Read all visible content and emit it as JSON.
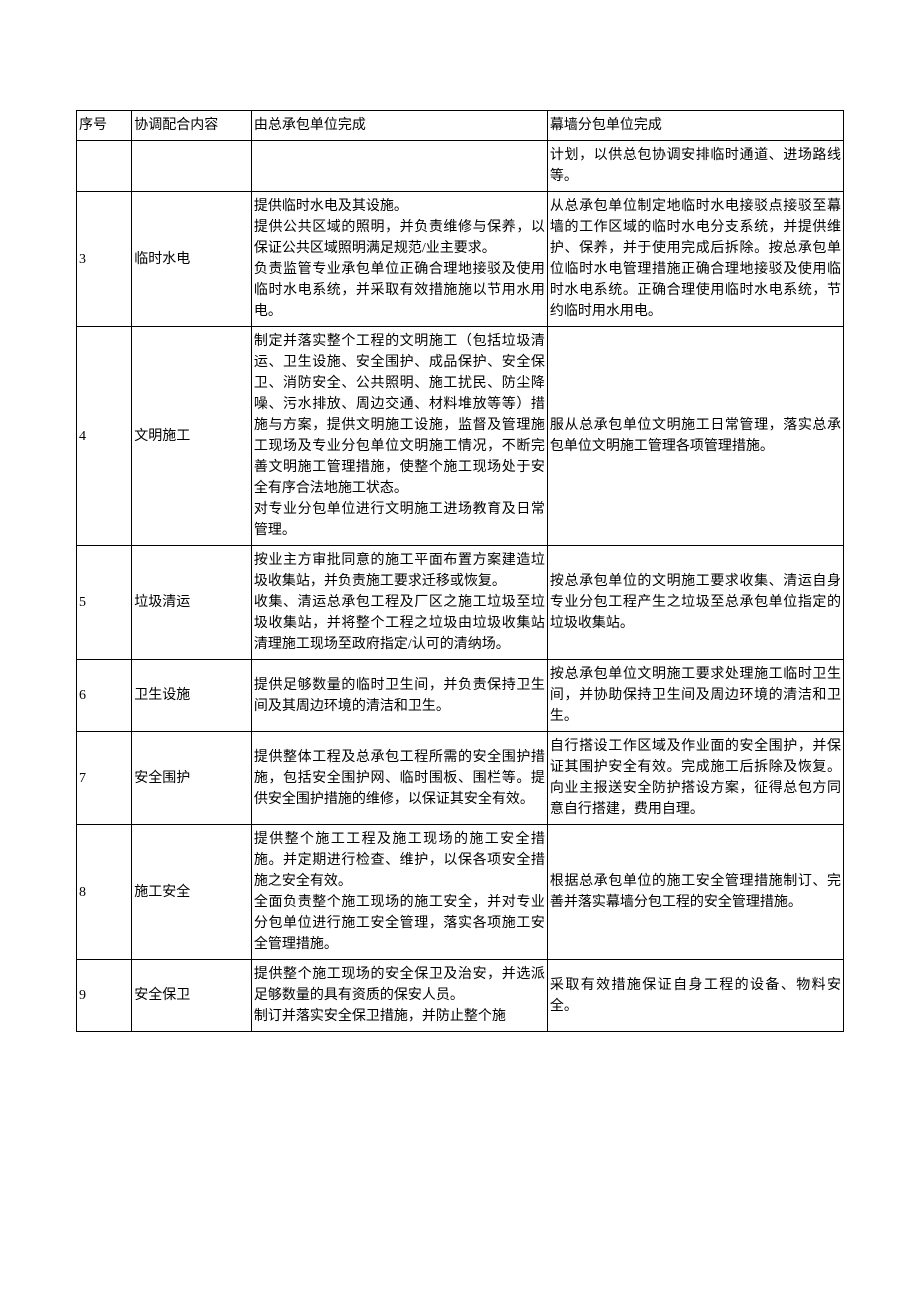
{
  "table": {
    "header": {
      "seq": "序号",
      "topic": "协调配合内容",
      "main": "由总承包单位完成",
      "sub": "幕墙分包单位完成"
    },
    "rows": [
      {
        "seq": "",
        "topic": "",
        "main": "",
        "sub": "计划，以供总包协调安排临时通道、进场路线等。"
      },
      {
        "seq": "3",
        "topic": "临时水电",
        "main": "提供临时水电及其设施。\n提供公共区域的照明，并负责维修与保养，以保证公共区域照明满足规范/业主要求。\n负责监管专业承包单位正确合理地接驳及使用临时水电系统，并采取有效措施施以节用水用电。",
        "sub": "从总承包单位制定地临时水电接驳点接驳至幕墙的工作区域的临时水电分支系统，并提供维护、保养，并于使用完成后拆除。按总承包单位临时水电管理措施正确合理地接驳及使用临时水电系统。正确合理使用临时水电系统，节约临时用水用电。"
      },
      {
        "seq": "4",
        "topic": "文明施工",
        "main": "制定并落实整个工程的文明施工（包括垃圾清运、卫生设施、安全围护、成品保护、安全保卫、消防安全、公共照明、施工扰民、防尘降噪、污水排放、周边交通、材料堆放等等）措施与方案，提供文明施工设施，监督及管理施工现场及专业分包单位文明施工情况，不断完善文明施工管理措施，使整个施工现场处于安全有序合法地施工状态。\n对专业分包单位进行文明施工进场教育及日常管理。",
        "sub": "服从总承包单位文明施工日常管理，落实总承包单位文明施工管理各项管理措施。"
      },
      {
        "seq": "5",
        "topic": "垃圾清运",
        "main": "按业主方审批同意的施工平面布置方案建造垃圾收集站，并负责施工要求迁移或恢复。\n收集、清运总承包工程及厂区之施工垃圾至垃圾收集站，并将整个工程之垃圾由垃圾收集站清理施工现场至政府指定/认可的清纳场。",
        "sub": "按总承包单位的文明施工要求收集、清运自身专业分包工程产生之垃圾至总承包单位指定的垃圾收集站。"
      },
      {
        "seq": "6",
        "topic": "卫生设施",
        "main": "提供足够数量的临时卫生间，并负责保持卫生间及其周边环境的清洁和卫生。",
        "sub": "按总承包单位文明施工要求处理施工临时卫生间，并协助保持卫生间及周边环境的清洁和卫生。"
      },
      {
        "seq": "7",
        "topic": "安全围护",
        "main": "提供整体工程及总承包工程所需的安全围护措施，包括安全围护网、临时围板、围栏等。提供安全围护措施的维修，以保证其安全有效。",
        "sub": "自行搭设工作区域及作业面的安全围护，并保证其围护安全有效。完成施工后拆除及恢复。向业主报送安全防护搭设方案，征得总包方同意自行搭建，费用自理。"
      },
      {
        "seq": "8",
        "topic": "施工安全",
        "main": "提供整个施工工程及施工现场的施工安全措施。并定期进行检查、维护，以保各项安全措施之安全有效。\n全面负责整个施工现场的施工安全，并对专业分包单位进行施工安全管理，落实各项施工安全管理措施。",
        "sub": "根据总承包单位的施工安全管理措施制订、完善并落实幕墙分包工程的安全管理措施。"
      },
      {
        "seq": "9",
        "topic": "安全保卫",
        "main": "提供整个施工现场的安全保卫及治安，并选派足够数量的具有资质的保安人员。\n制订并落实安全保卫措施，并防止整个施",
        "sub": "采取有效措施保证自身工程的设备、物料安全。"
      }
    ]
  }
}
